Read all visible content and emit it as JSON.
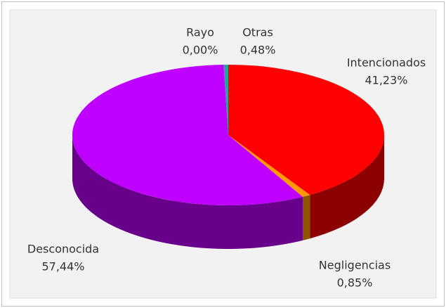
{
  "chart_data": {
    "type": "pie3d",
    "categories": [
      "Intencionados",
      "Negligencias",
      "Desconocida",
      "Rayo",
      "Otras"
    ],
    "values": [
      41.23,
      0.85,
      57.44,
      0.0,
      0.48
    ],
    "value_labels": [
      "41,23%",
      "0,85%",
      "57,44%",
      "0,00%",
      "0,48%"
    ],
    "colors": [
      "#ff0000",
      "#ff9900",
      "#bf00ff",
      "#3366cc",
      "#2e9e9e"
    ]
  }
}
